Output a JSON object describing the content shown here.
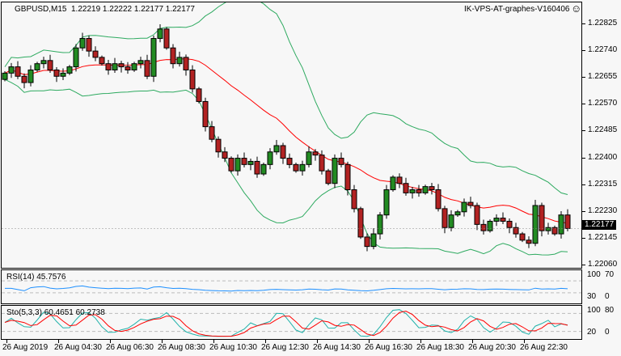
{
  "header": {
    "symbol": "GBPUSD,M15",
    "ohlc": "1.22219 1.22222 1.22177 1.22177",
    "server": "IK-VPS-AT-graphes-V160406",
    "smiley_icon": "smiley-icon"
  },
  "price_axis": {
    "labels": [
      "1.22825",
      "1.22740",
      "1.22655",
      "1.22570",
      "1.22485",
      "1.22400",
      "1.22315",
      "1.22230",
      "1.22145",
      "1.22060"
    ],
    "current": "1.22177",
    "max": 1.22825,
    "min": 1.2206
  },
  "colors": {
    "bull": "#228b22",
    "bear": "#b22222",
    "band": "#2eaa60",
    "ma": "#ff0000",
    "rsi": "#1e90ff",
    "sto_main": "#20b2aa",
    "sto_signal": "#ff0000"
  },
  "rsi": {
    "label": "RSI(14) 45.7576",
    "levels": [
      "100",
      "70",
      "30",
      "0"
    ]
  },
  "sto": {
    "label": "Sto(5,3,3) 60.4651 60.2738",
    "levels": [
      "100",
      "80",
      "20",
      "0"
    ]
  },
  "time_axis": [
    "26 Aug 2019",
    "26 Aug 04:30",
    "26 Aug 06:30",
    "26 Aug 08:30",
    "26 Aug 10:30",
    "26 Aug 12:30",
    "26 Aug 14:30",
    "26 Aug 16:30",
    "26 Aug 18:30",
    "26 Aug 20:30",
    "26 Aug 22:30"
  ],
  "closes": [
    1.2267,
    1.2269,
    1.2266,
    1.2264,
    1.2268,
    1.227,
    1.2271,
    1.2268,
    1.2266,
    1.2267,
    1.2269,
    1.2275,
    1.2278,
    1.2274,
    1.2272,
    1.227,
    1.2268,
    1.227,
    1.2269,
    1.2268,
    1.227,
    1.2271,
    1.2266,
    1.2278,
    1.2281,
    1.2275,
    1.227,
    1.2272,
    1.2268,
    1.2262,
    1.2258,
    1.225,
    1.2246,
    1.2242,
    1.224,
    1.2236,
    1.224,
    1.2238,
    1.2239,
    1.2235,
    1.2238,
    1.2242,
    1.2244,
    1.224,
    1.2238,
    1.2236,
    1.2238,
    1.2242,
    1.2241,
    1.2236,
    1.2232,
    1.224,
    1.2238,
    1.223,
    1.2224,
    1.2215,
    1.2212,
    1.2216,
    1.2222,
    1.223,
    1.2234,
    1.2232,
    1.2229,
    1.223,
    1.2229,
    1.2231,
    1.223,
    1.2224,
    1.2218,
    1.2222,
    1.2223,
    1.2226,
    1.2225,
    1.2219,
    1.2217,
    1.222,
    1.2221,
    1.222,
    1.2218,
    1.2216,
    1.2214,
    1.2213,
    1.2225,
    1.2217,
    1.2218,
    1.2216,
    1.2222,
    1.22177
  ]
}
